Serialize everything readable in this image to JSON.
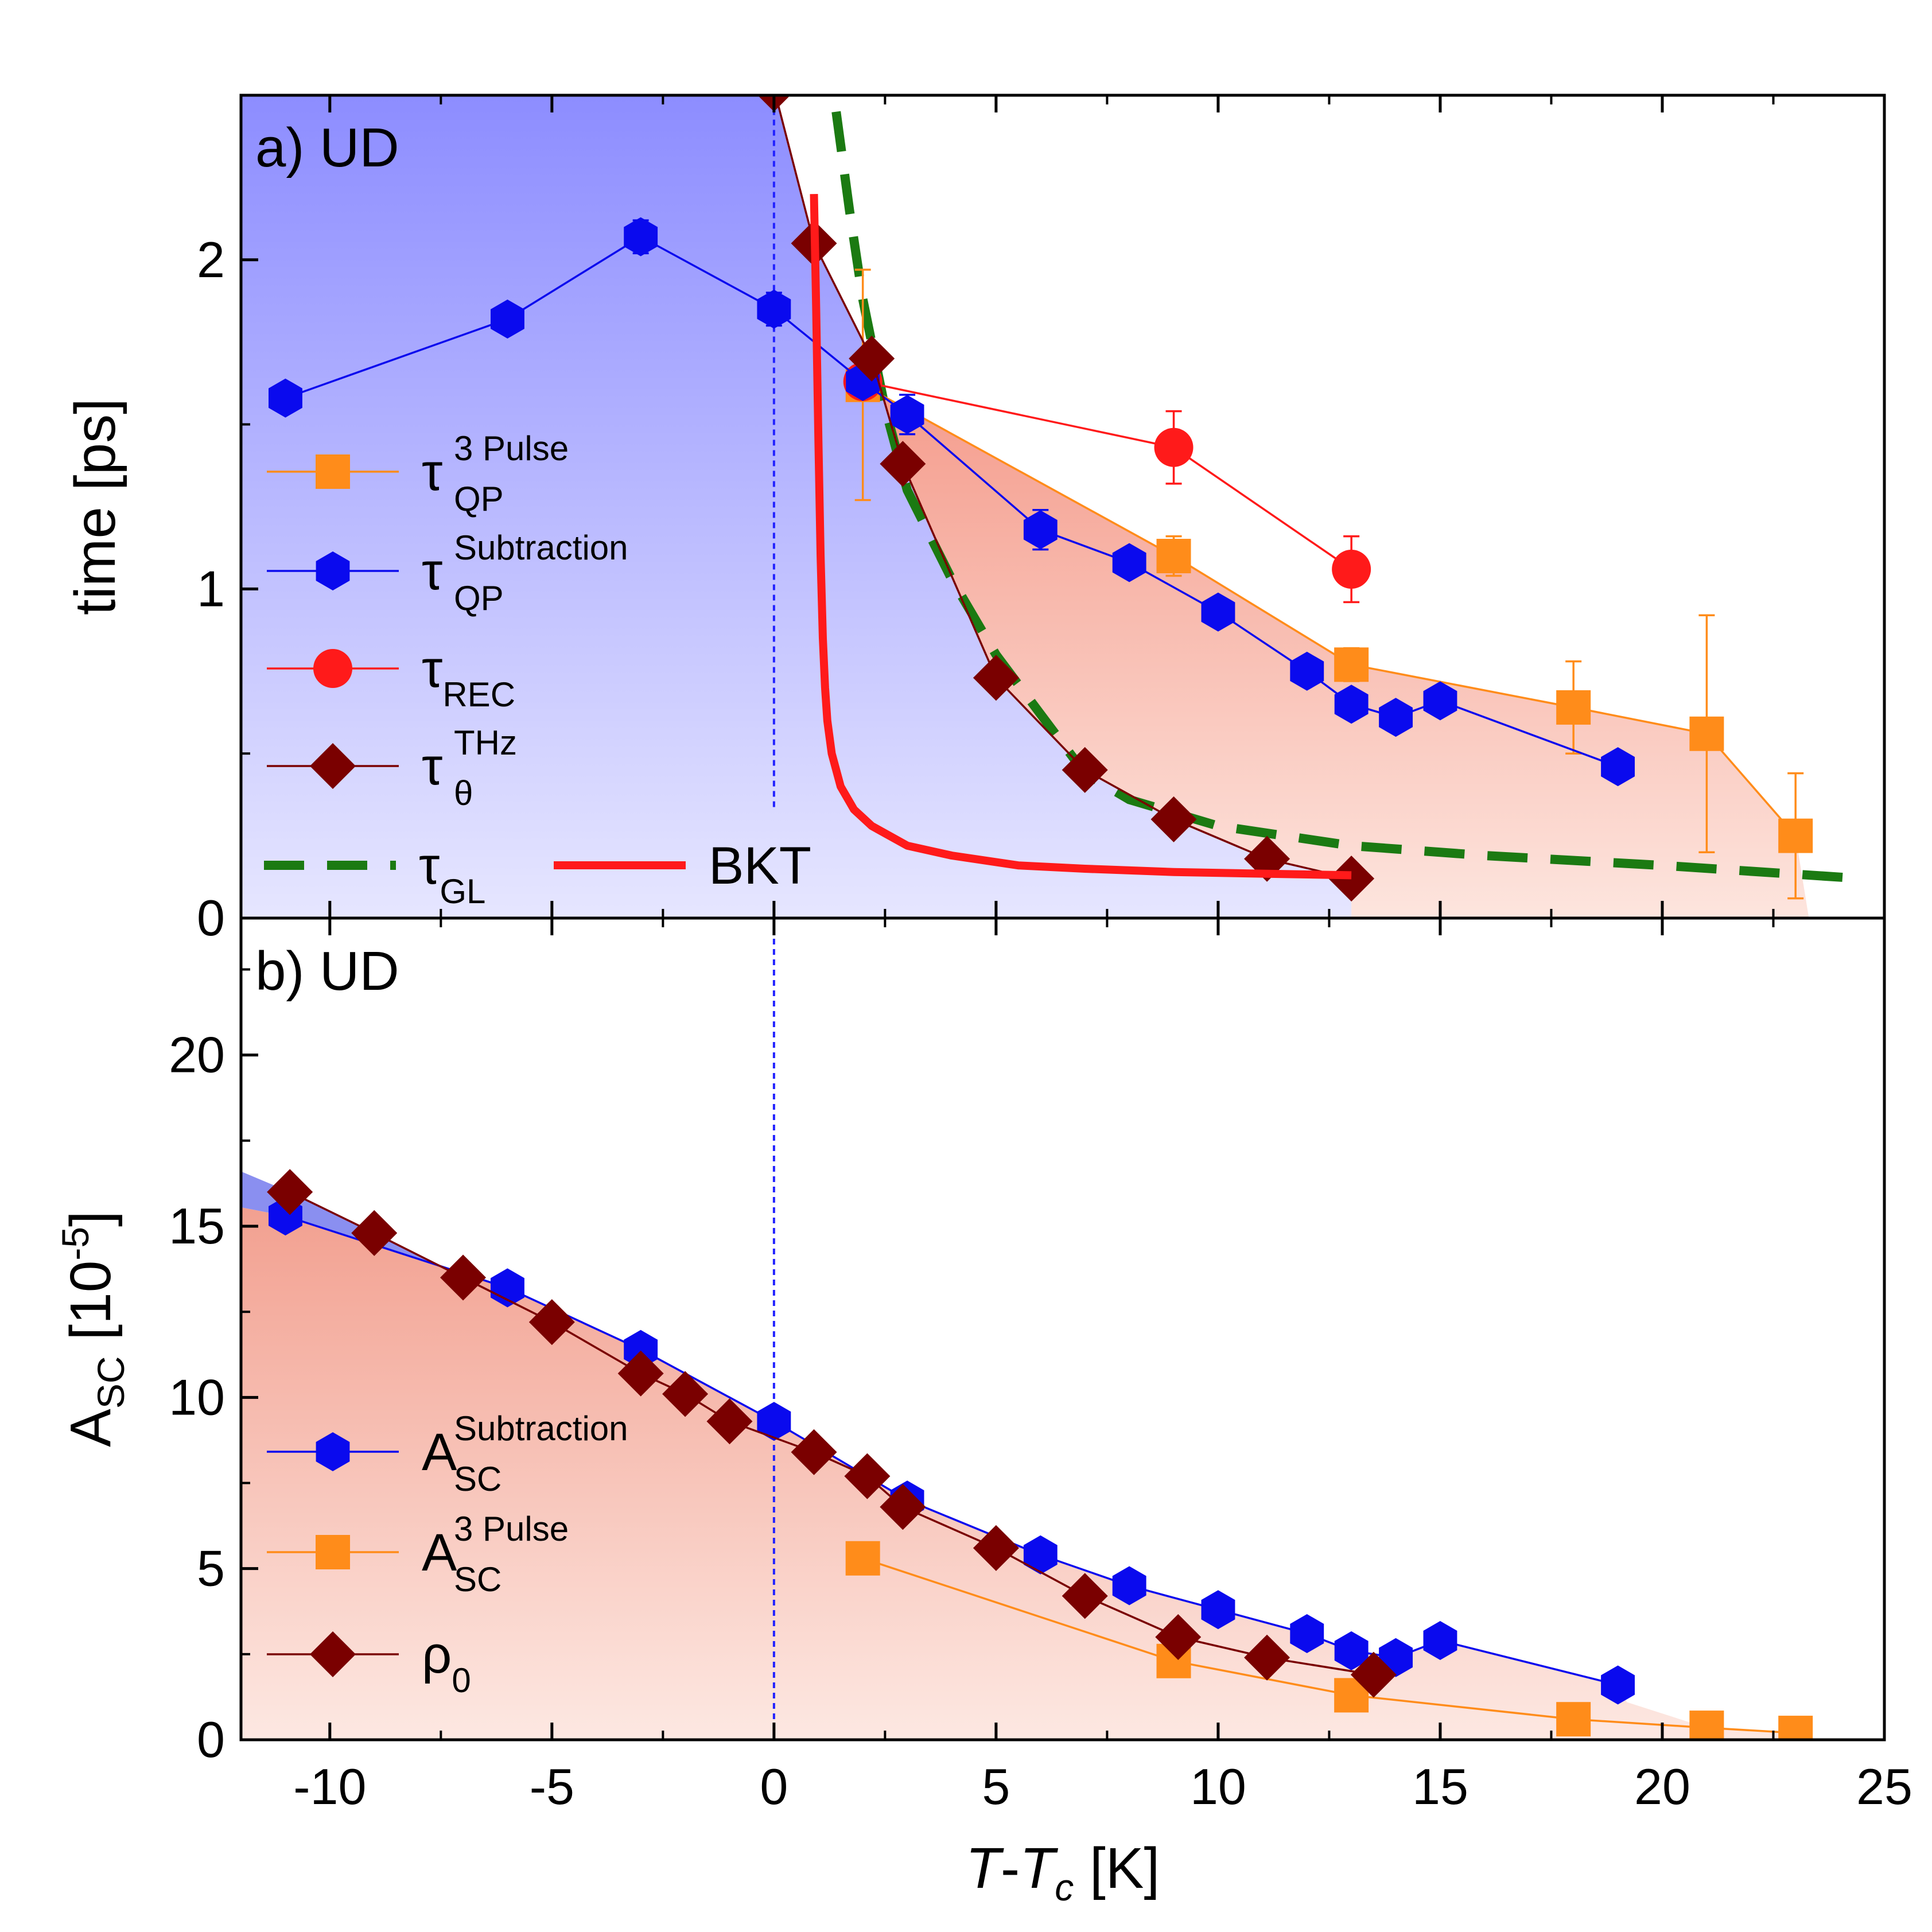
{
  "chart_data": [
    {
      "panel": "a",
      "type": "line",
      "label": "a)",
      "title": "UD",
      "xlabel": "T-T_c [K]",
      "ylabel": "time [ps]",
      "xlim": [
        -12,
        25
      ],
      "ylim": [
        0,
        2.5
      ],
      "xticks": [
        -10,
        -5,
        0,
        5,
        10,
        15,
        20,
        25
      ],
      "yticks": [
        0,
        1,
        2
      ],
      "ytick_labels": [
        "0",
        "1",
        "2"
      ],
      "series": [
        {
          "name": "tau_QP^3 Pulse",
          "legend_main": "τ",
          "legend_sup": "3 Pulse",
          "legend_sub": "QP",
          "marker": "square",
          "color": "#ff8c1a",
          "x": [
            2,
            9,
            13,
            18,
            21,
            23
          ],
          "y": [
            1.62,
            1.1,
            0.77,
            0.64,
            0.56,
            0.25
          ],
          "err": [
            0.35,
            0.06,
            0.05,
            0.14,
            0.36,
            0.19
          ]
        },
        {
          "name": "tau_QP^Subtraction",
          "legend_main": "τ",
          "legend_sup": "Subtraction",
          "legend_sub": "QP",
          "marker": "hexagon",
          "color": "#0a0aee",
          "x": [
            -11,
            -6,
            -3,
            0,
            2,
            3,
            6,
            8,
            10,
            12,
            13,
            14,
            15,
            19
          ],
          "y": [
            1.58,
            1.82,
            2.07,
            1.85,
            1.63,
            1.53,
            1.18,
            1.08,
            0.93,
            0.75,
            0.65,
            0.61,
            0.66,
            0.46
          ],
          "err": [
            0,
            0,
            0.05,
            0.05,
            0,
            0.06,
            0.06,
            0,
            0,
            0,
            0,
            0,
            0,
            0
          ]
        },
        {
          "name": "tau_REC",
          "legend_main": "τ",
          "legend_sup": "",
          "legend_sub": "REC",
          "marker": "circle",
          "color": "#ff1a1a",
          "x": [
            2,
            9,
            13
          ],
          "y": [
            1.63,
            1.43,
            1.06
          ],
          "err": [
            0,
            0.11,
            0.1
          ]
        },
        {
          "name": "tau_theta^THz",
          "legend_main": "τ",
          "legend_sup": "THz",
          "legend_sub": "θ",
          "marker": "diamond",
          "color": "#7a0000",
          "x": [
            0,
            0.9,
            2.2,
            2.9,
            5,
            7,
            9,
            11.1,
            13
          ],
          "y": [
            2.52,
            2.05,
            1.7,
            1.38,
            0.73,
            0.45,
            0.3,
            0.18,
            0.12
          ],
          "err": [
            0,
            0,
            0,
            0,
            0,
            0,
            0,
            0,
            0
          ]
        },
        {
          "name": "tau_GL",
          "legend_main": "τ",
          "legend_sup": "",
          "legend_sub": "GL",
          "style": "dashed",
          "color": "#1b7a12",
          "x": [
            1.4,
            1.7,
            2.0,
            2.5,
            3,
            4,
            5,
            6,
            7,
            8,
            10,
            13,
            16,
            20,
            24.5
          ],
          "y": [
            2.45,
            2.15,
            1.88,
            1.55,
            1.3,
            1.03,
            0.8,
            0.62,
            0.44,
            0.36,
            0.28,
            0.22,
            0.19,
            0.16,
            0.12
          ]
        },
        {
          "name": "BKT",
          "legend_main": "BKT",
          "style": "solid",
          "color": "#ff1a1a",
          "x": [
            0.9,
            0.95,
            1.0,
            1.05,
            1.1,
            1.15,
            1.2,
            1.3,
            1.5,
            1.8,
            2.2,
            3,
            4,
            5.5,
            7,
            9,
            11,
            13
          ],
          "y": [
            2.2,
            1.85,
            1.45,
            1.1,
            0.85,
            0.7,
            0.6,
            0.5,
            0.4,
            0.33,
            0.28,
            0.22,
            0.19,
            0.16,
            0.15,
            0.14,
            0.135,
            0.13
          ]
        }
      ]
    },
    {
      "panel": "b",
      "type": "line",
      "label": "b)",
      "title": "UD",
      "xlabel": "T-T_c [K]",
      "ylabel": "A_SC [10^-5]",
      "xlim": [
        -12,
        25
      ],
      "ylim": [
        0,
        24
      ],
      "xticks": [
        -10,
        -5,
        0,
        5,
        10,
        15,
        20,
        25
      ],
      "yticks": [
        0,
        5,
        10,
        15,
        20
      ],
      "ytick_labels": [
        "0",
        "5",
        "10",
        "15",
        "20"
      ],
      "series": [
        {
          "name": "A_SC^Subtraction",
          "legend_main": "A",
          "legend_sup": "Subtraction",
          "legend_sub": "SC",
          "marker": "hexagon",
          "color": "#0a0aee",
          "x": [
            -11,
            -6,
            -3,
            0,
            3,
            6,
            8,
            10,
            12,
            13,
            14,
            15,
            19
          ],
          "y": [
            15.3,
            13.2,
            11.4,
            9.3,
            7.0,
            5.4,
            4.5,
            3.8,
            3.1,
            2.6,
            2.4,
            2.9,
            1.6
          ]
        },
        {
          "name": "A_SC^3 Pulse",
          "legend_main": "A",
          "legend_sup": "3 Pulse",
          "legend_sub": "SC",
          "marker": "square",
          "color": "#ff8c1a",
          "x": [
            2,
            9,
            13,
            18,
            21,
            23
          ],
          "y": [
            5.3,
            2.3,
            1.3,
            0.6,
            0.35,
            0.2
          ]
        },
        {
          "name": "rho_0",
          "legend_main": "ρ",
          "legend_sup": "",
          "legend_sub": "0",
          "marker": "diamond",
          "color": "#7a0000",
          "x": [
            -10.9,
            -9,
            -7,
            -5,
            -3,
            -2,
            -1,
            0.9,
            2.1,
            2.9,
            5,
            7,
            9.1,
            11.1,
            13.5
          ],
          "y": [
            16.0,
            14.8,
            13.5,
            12.2,
            10.7,
            10.1,
            9.3,
            8.4,
            7.7,
            6.8,
            5.6,
            4.2,
            3.0,
            2.4,
            1.9
          ]
        }
      ]
    }
  ]
}
